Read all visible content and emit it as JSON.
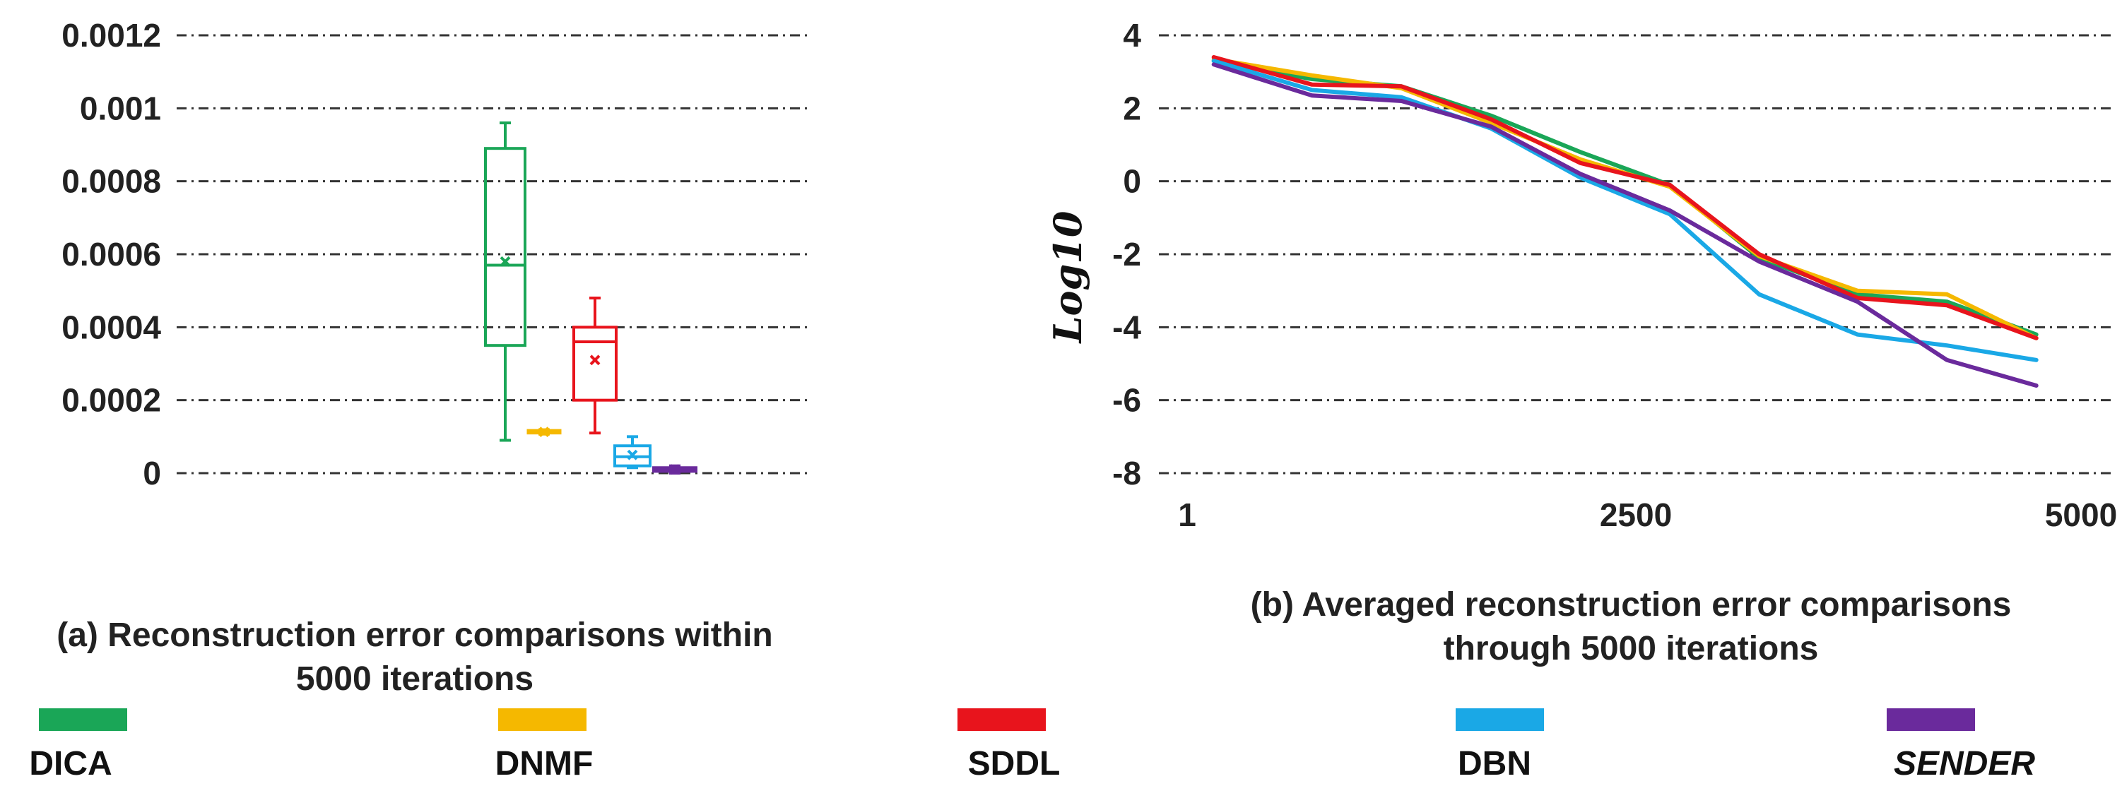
{
  "chart_data": [
    {
      "type": "box",
      "ylim": [
        0,
        0.0012
      ],
      "yticks": [
        "0.0012",
        "0.001",
        "0.0008",
        "0.0006",
        "0.0004",
        "0.0002",
        "0"
      ],
      "caption": [
        "(a) Reconstruction error comparisons within",
        "5000 iterations"
      ],
      "series": [
        {
          "name": "DICA",
          "color": "#1aa657",
          "min": 9e-05,
          "q1": 0.00035,
          "median": 0.00057,
          "mean": 0.00058,
          "q3": 0.00089,
          "max": 0.00096
        },
        {
          "name": "DNMF",
          "color": "#f5b800",
          "min": 0.000108,
          "q1": 0.000111,
          "median": 0.000113,
          "mean": 0.000113,
          "q3": 0.000116,
          "max": 0.000118
        },
        {
          "name": "SDDL",
          "color": "#e8141c",
          "min": 0.00011,
          "q1": 0.0002,
          "median": 0.00036,
          "mean": 0.00031,
          "q3": 0.0004,
          "max": 0.00048
        },
        {
          "name": "DBN",
          "color": "#1aa8e6",
          "min": 1.5e-05,
          "q1": 2e-05,
          "median": 4.5e-05,
          "mean": 5e-05,
          "q3": 7.5e-05,
          "max": 0.0001
        },
        {
          "name": "SENDER",
          "color": "#6a2a9c",
          "min": 0.0,
          "q1": 5e-06,
          "median": 1e-05,
          "mean": 1e-05,
          "q3": 1.5e-05,
          "max": 2e-05
        }
      ]
    },
    {
      "type": "line",
      "ylabel": "Log10",
      "ylim": [
        -8,
        4
      ],
      "xlim": [
        1,
        5000
      ],
      "yticks": [
        "4",
        "2",
        "0",
        "-2",
        "-4",
        "-6",
        "-8"
      ],
      "xticks": [
        "1",
        "2500",
        "5000"
      ],
      "caption": [
        "(b) Averaged reconstruction error comparisons",
        "through 5000 iterations"
      ],
      "x": [
        150,
        700,
        1200,
        1700,
        2200,
        2700,
        3200,
        3750,
        4250,
        4750
      ],
      "series": [
        {
          "name": "DICA",
          "color": "#1aa657",
          "values": [
            3.3,
            2.8,
            2.6,
            1.8,
            0.8,
            -0.1,
            -2.1,
            -3.1,
            -3.3,
            -4.2
          ]
        },
        {
          "name": "DNMF",
          "color": "#f5b800",
          "values": [
            3.35,
            2.9,
            2.55,
            1.6,
            0.6,
            -0.15,
            -2.05,
            -3.0,
            -3.1,
            -4.3
          ]
        },
        {
          "name": "SDDL",
          "color": "#e8141c",
          "values": [
            3.4,
            2.65,
            2.6,
            1.7,
            0.5,
            -0.1,
            -2.0,
            -3.2,
            -3.4,
            -4.3
          ]
        },
        {
          "name": "DBN",
          "color": "#1aa8e6",
          "values": [
            3.3,
            2.5,
            2.3,
            1.45,
            0.1,
            -0.9,
            -3.1,
            -4.2,
            -4.5,
            -4.9
          ]
        },
        {
          "name": "SENDER",
          "color": "#6a2a9c",
          "values": [
            3.2,
            2.35,
            2.2,
            1.5,
            0.2,
            -0.8,
            -2.2,
            -3.3,
            -4.9,
            -5.6
          ]
        }
      ]
    }
  ],
  "legend": [
    {
      "name": "DICA",
      "color": "#1aa657",
      "italic": false
    },
    {
      "name": "DNMF",
      "color": "#f5b800",
      "italic": false
    },
    {
      "name": "SDDL",
      "color": "#e8141c",
      "italic": false
    },
    {
      "name": "DBN",
      "color": "#1aa8e6",
      "italic": false
    },
    {
      "name": "SENDER",
      "color": "#6a2a9c",
      "italic": true
    }
  ]
}
